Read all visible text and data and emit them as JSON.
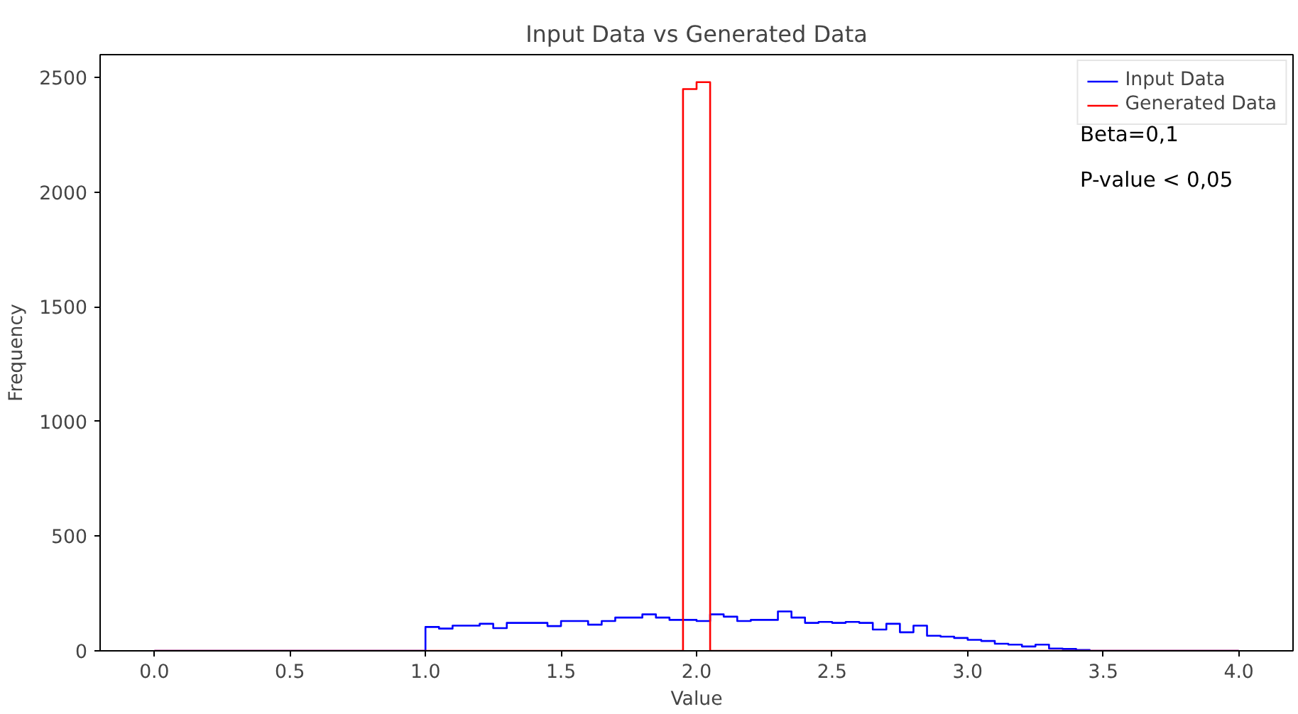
{
  "chart_data": {
    "type": "histogram",
    "title": "Input Data vs Generated Data",
    "xlabel": "Value",
    "ylabel": "Frequency",
    "xlim": [
      -0.2,
      4.2
    ],
    "ylim": [
      0,
      2600
    ],
    "xticks": [
      {
        "value": 0,
        "label": "0.0"
      },
      0.5,
      {
        "value": 1,
        "label": "1.0"
      },
      1.5,
      {
        "value": 2,
        "label": "2.0"
      },
      2.5,
      {
        "value": 3,
        "label": "3.0"
      },
      3.5,
      {
        "value": 4,
        "label": "4.0"
      }
    ],
    "yticks": [
      0,
      500,
      1000,
      1500,
      2000,
      2500
    ],
    "grid": false,
    "legend": "top right",
    "annotations": [
      "Beta=0,1",
      "P-value < 0,05"
    ],
    "bins": [
      0,
      0.05,
      0.1,
      0.15,
      0.2,
      0.25,
      0.3,
      0.35,
      0.4,
      0.45,
      0.5,
      0.55,
      0.6,
      0.65,
      0.7,
      0.75,
      0.8,
      0.85,
      0.9,
      0.95,
      1.0,
      1.05,
      1.1,
      1.15,
      1.2,
      1.25,
      1.3,
      1.35,
      1.4,
      1.45,
      1.5,
      1.55,
      1.6,
      1.65,
      1.7,
      1.75,
      1.8,
      1.85,
      1.9,
      1.95,
      2.0,
      2.05,
      2.1,
      2.15,
      2.2,
      2.25,
      2.3,
      2.35,
      2.4,
      2.45,
      2.5,
      2.55,
      2.6,
      2.65,
      2.7,
      2.75,
      2.8,
      2.85,
      2.9,
      2.95,
      3.0,
      3.05,
      3.1,
      3.15,
      3.2,
      3.25,
      3.3,
      3.35,
      3.4,
      3.45,
      3.5,
      3.55,
      3.6,
      3.65,
      3.7,
      3.75,
      3.8,
      3.85,
      3.9,
      3.95,
      4.0
    ],
    "series": [
      {
        "name": "Input Data",
        "color": "#0000ff",
        "values": [
          0,
          0,
          0,
          0,
          0,
          0,
          0,
          0,
          0,
          0,
          0,
          0,
          0,
          0,
          0,
          0,
          0,
          0,
          0,
          0,
          104,
          97,
          110,
          110,
          118,
          99,
          122,
          122,
          122,
          108,
          130,
          130,
          114,
          130,
          145,
          145,
          159,
          145,
          135,
          135,
          130,
          159,
          149,
          130,
          135,
          135,
          172,
          145,
          122,
          126,
          122,
          126,
          122,
          93,
          118,
          81,
          110,
          66,
          62,
          56,
          48,
          43,
          31,
          27,
          19,
          27,
          10,
          8,
          4,
          0,
          0,
          0,
          0,
          0,
          0,
          0,
          0,
          0,
          0,
          0
        ]
      },
      {
        "name": "Generated Data",
        "color": "#ff0000",
        "values": [
          0,
          0,
          0,
          0,
          0,
          0,
          0,
          0,
          0,
          0,
          0,
          0,
          0,
          0,
          0,
          0,
          0,
          0,
          0,
          0,
          0,
          0,
          0,
          0,
          0,
          0,
          0,
          0,
          0,
          0,
          0,
          0,
          0,
          0,
          0,
          0,
          0,
          0,
          0,
          2450,
          2480,
          0,
          0,
          0,
          0,
          0,
          0,
          0,
          0,
          0,
          0,
          0,
          0,
          0,
          0,
          0,
          0,
          0,
          0,
          0,
          0,
          0,
          0,
          0,
          0,
          0,
          0,
          0,
          0,
          0,
          0,
          0,
          0,
          0,
          0,
          0,
          0,
          0,
          0,
          0
        ]
      }
    ]
  }
}
